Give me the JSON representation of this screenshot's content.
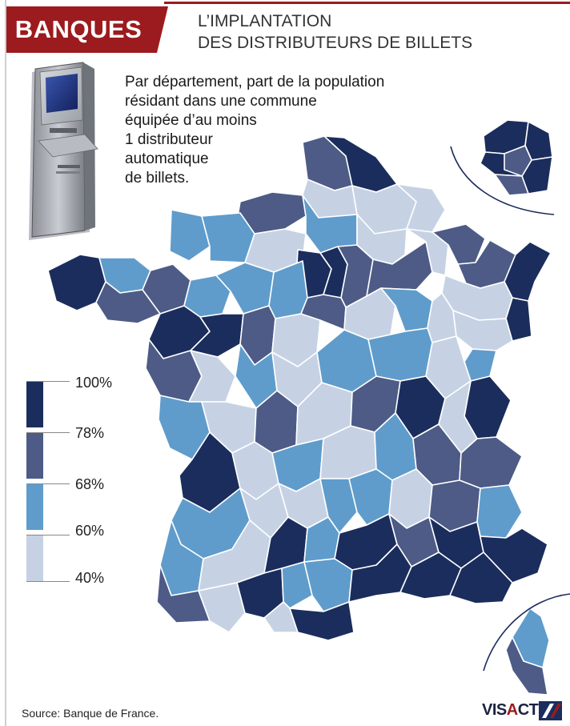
{
  "header": {
    "tag": "BANQUES",
    "title_lines": [
      "L’IMPLANTATION",
      "DES DISTRIBUTEURS DE BILLETS"
    ]
  },
  "subtitle_lines": [
    "Par département, part de la population",
    "résidant dans une commune",
    "équipée d’au moins",
    "1 distributeur",
    "automatique",
    "de billets."
  ],
  "legend": {
    "labels": [
      "100%",
      "78%",
      "68%",
      "60%",
      "40%"
    ],
    "colors": [
      "#1b2d5c",
      "#4d5b86",
      "#5f9ccb",
      "#c6d2e4"
    ]
  },
  "source": "Source: Banque de France.",
  "brand": {
    "name_start": "VIS",
    "name_mark": "A",
    "name_end": "CTU",
    "accent": "#9b1b1e"
  },
  "colors": {
    "dark": "#1b2d5c",
    "mid_dark": "#4d5b86",
    "mid_light": "#5f9ccb",
    "light": "#c6d2e4"
  }
}
